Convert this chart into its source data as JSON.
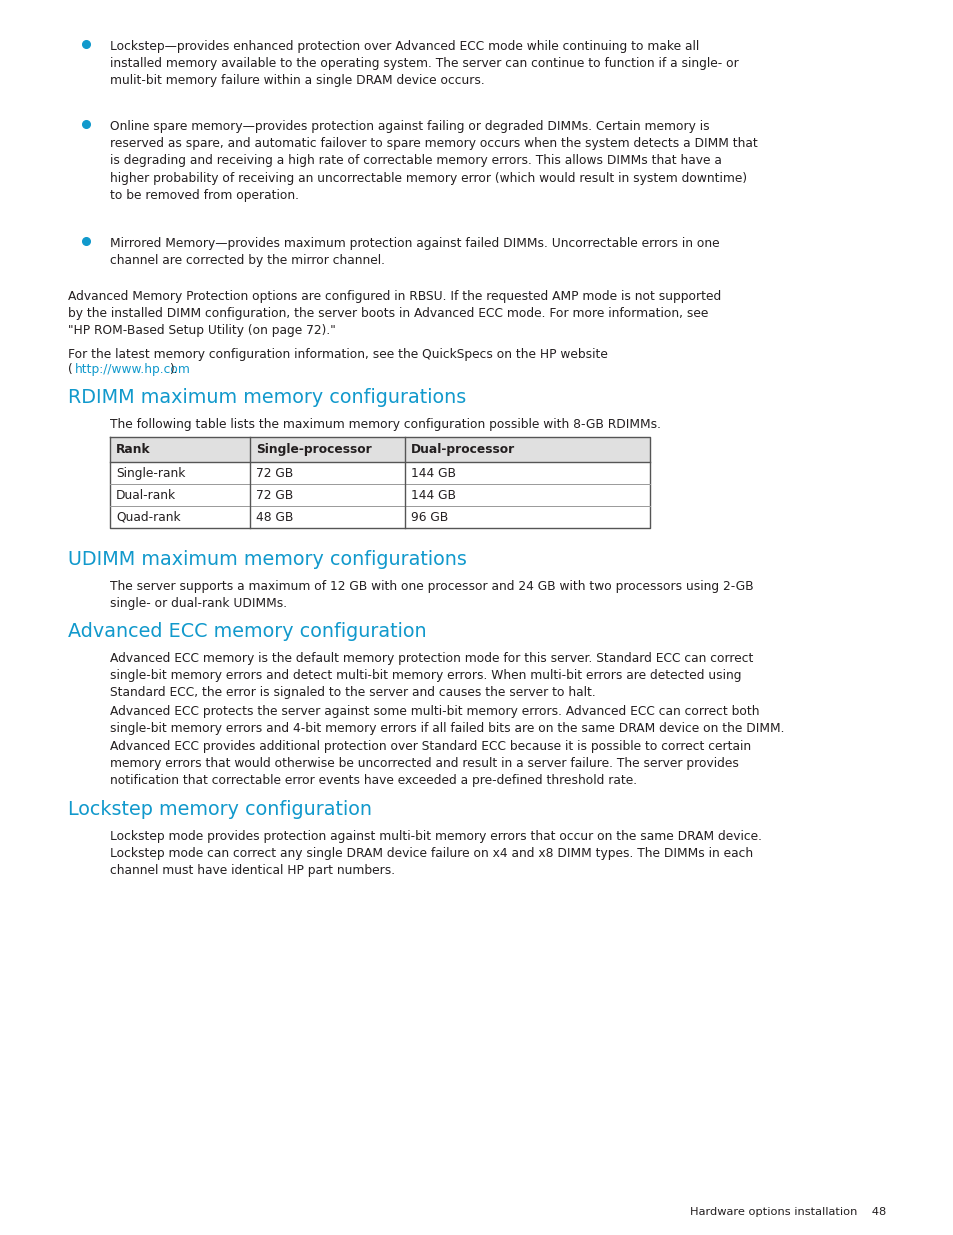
{
  "bg_color": "#ffffff",
  "text_color": "#231f20",
  "blue_color": "#1199cc",
  "link_color": "#1199cc",
  "bullet_color": "#1199cc",
  "bullet1": "Lockstep—provides enhanced protection over Advanced ECC mode while continuing to make all\ninstalled memory available to the operating system. The server can continue to function if a single- or\nmulit-bit memory failure within a single DRAM device occurs.",
  "bullet2": "Online spare memory—provides protection against failing or degraded DIMMs. Certain memory is\nreserved as spare, and automatic failover to spare memory occurs when the system detects a DIMM that\nis degrading and receiving a high rate of correctable memory errors. This allows DIMMs that have a\nhigher probability of receiving an uncorrectable memory error (which would result in system downtime)\nto be removed from operation.",
  "bullet3": "Mirrored Memory—provides maximum protection against failed DIMMs. Uncorrectable errors in one\nchannel are corrected by the mirror channel.",
  "para1_line1": "Advanced Memory Protection options are configured in RBSU. If the requested AMP mode is not supported",
  "para1_line2": "by the installed DIMM configuration, the server boots in Advanced ECC mode. For more information, see",
  "para1_line3": "\"HP ROM-Based Setup Utility (on page 72).\"",
  "para2_line1": "For the latest memory configuration information, see the QuickSpecs on the HP website",
  "para2_line2_pre": "(",
  "para2_link": "http://www.hp.com",
  "para2_line2_post": ").",
  "section1_title": "RDIMM maximum memory configurations",
  "section1_desc": "The following table lists the maximum memory configuration possible with 8-GB RDIMMs.",
  "table_headers": [
    "Rank",
    "Single-processor",
    "Dual-processor"
  ],
  "table_rows": [
    [
      "Single-rank",
      "72 GB",
      "144 GB"
    ],
    [
      "Dual-rank",
      "72 GB",
      "144 GB"
    ],
    [
      "Quad-rank",
      "48 GB",
      "96 GB"
    ]
  ],
  "section2_title": "UDIMM maximum memory configurations",
  "section2_desc": "The server supports a maximum of 12 GB with one processor and 24 GB with two processors using 2-GB\nsingle- or dual-rank UDIMMs.",
  "section3_title": "Advanced ECC memory configuration",
  "section3_para1": "Advanced ECC memory is the default memory protection mode for this server. Standard ECC can correct\nsingle-bit memory errors and detect multi-bit memory errors. When multi-bit errors are detected using\nStandard ECC, the error is signaled to the server and causes the server to halt.",
  "section3_para2": "Advanced ECC protects the server against some multi-bit memory errors. Advanced ECC can correct both\nsingle-bit memory errors and 4-bit memory errors if all failed bits are on the same DRAM device on the DIMM.",
  "section3_para3": "Advanced ECC provides additional protection over Standard ECC because it is possible to correct certain\nmemory errors that would otherwise be uncorrected and result in a server failure. The server provides\nnotification that correctable error events have exceeded a pre-defined threshold rate.",
  "section4_title": "Lockstep memory configuration",
  "section4_para1": "Lockstep mode provides protection against multi-bit memory errors that occur on the same DRAM device.\nLockstep mode can correct any single DRAM device failure on x4 and x8 DIMM types. The DIMMs in each\nchannel must have identical HP part numbers.",
  "footer_text": "Hardware options installation    48"
}
